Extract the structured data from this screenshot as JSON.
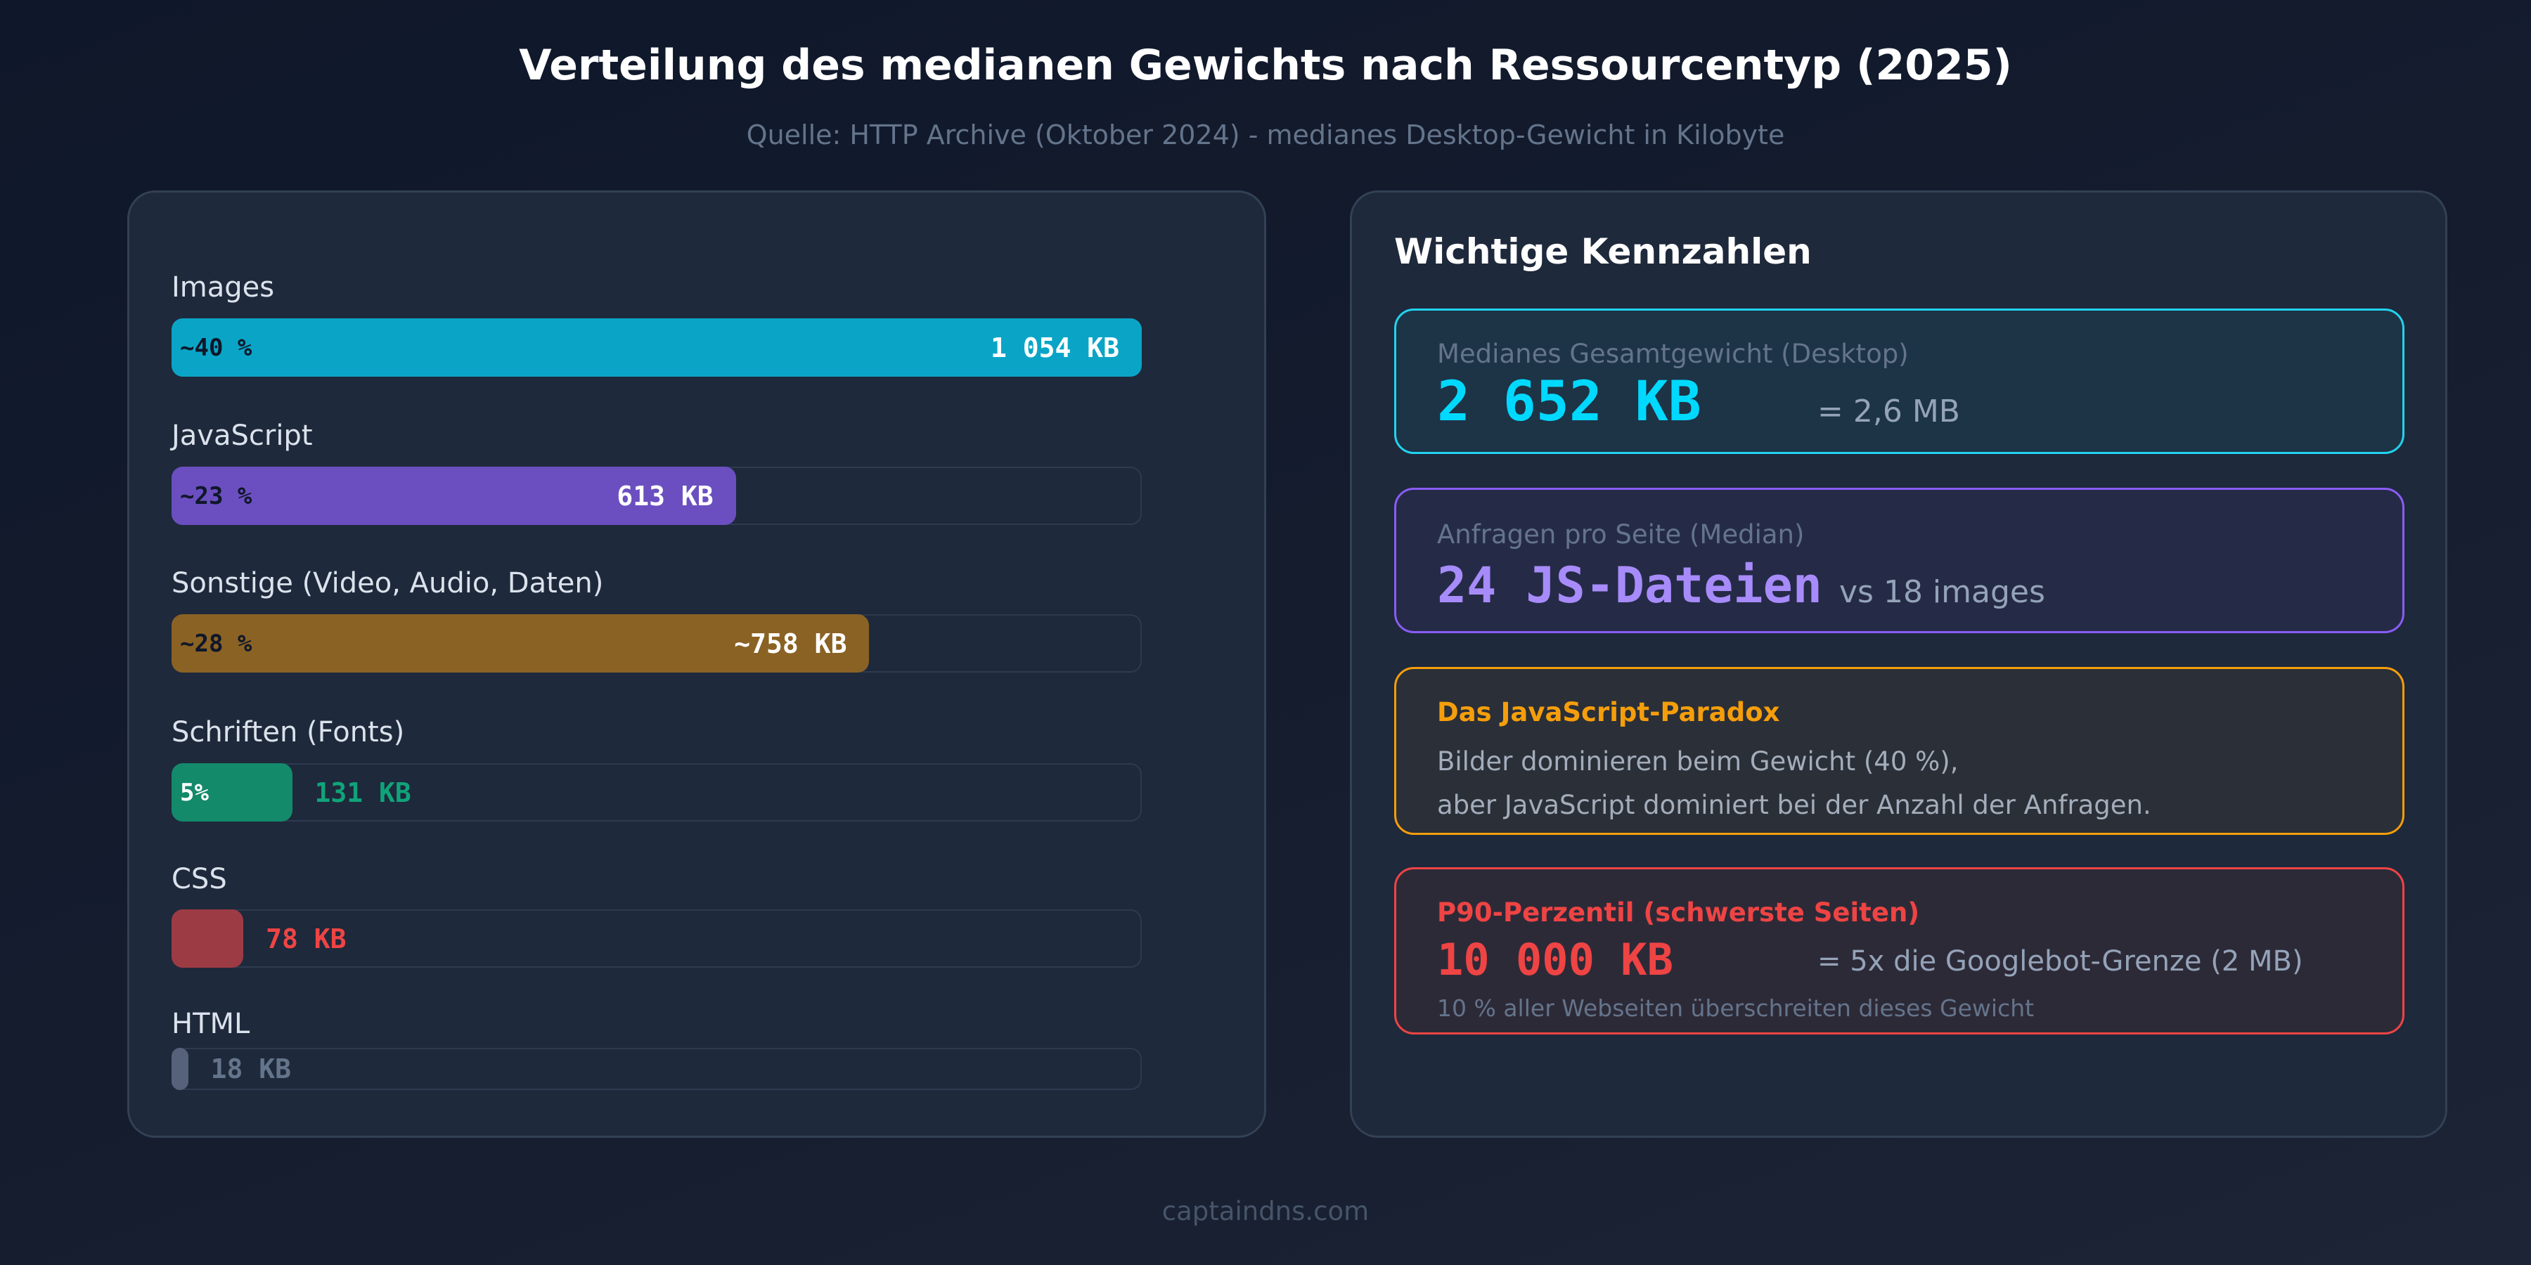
{
  "chart_data": {
    "type": "bar",
    "orientation": "horizontal",
    "title": "Verteilung des medianen Gewichts nach Ressourcentyp (2025)",
    "subtitle": "Quelle: HTTP Archive (Oktober 2024) - medianes Desktop-Gewicht in Kilobyte",
    "unit": "KB",
    "categories": [
      "Images",
      "JavaScript",
      "Sonstige (Video, Audio, Daten)",
      "Schriften (Fonts)",
      "CSS",
      "HTML"
    ],
    "values": [
      1054,
      613,
      758,
      131,
      78,
      18
    ],
    "bars": [
      {
        "label": "Images",
        "kb": 1054,
        "pct_label": "~40 %",
        "value_label": "1 054 KB",
        "color": "#0aa5c6",
        "value_inside": true,
        "pct_color": "#0f172a",
        "value_color": "#ffffff"
      },
      {
        "label": "JavaScript",
        "kb": 613,
        "pct_label": "~23 %",
        "value_label": "613 KB",
        "color": "#6b4fc0",
        "value_inside": true,
        "pct_color": "#0f172a",
        "value_color": "#ffffff"
      },
      {
        "label": "Sonstige (Video, Audio, Daten)",
        "kb": 758,
        "pct_label": "~28 %",
        "value_label": "~758 KB",
        "color": "#8a6224",
        "value_inside": true,
        "pct_color": "#0f172a",
        "value_color": "#ffffff"
      },
      {
        "label": "Schriften (Fonts)",
        "kb": 131,
        "pct_label": "5%",
        "value_label": "131 KB",
        "color": "#138a6a",
        "value_inside": false,
        "pct_color": "#ffffff",
        "value_color": "#10a37a"
      },
      {
        "label": "CSS",
        "kb": 78,
        "pct_label": "",
        "value_label": "78 KB",
        "color": "#9d3b45",
        "value_inside": false,
        "pct_color": "#ffffff",
        "value_color": "#ef4444"
      },
      {
        "label": "HTML",
        "kb": 18,
        "pct_label": "",
        "value_label": "18 KB",
        "color": "#55627a",
        "value_inside": false,
        "pct_color": "#ffffff",
        "value_color": "#64748b"
      }
    ],
    "grid": false,
    "legend": "none"
  },
  "header": {
    "title": "Verteilung des medianen Gewichts nach Ressourcentyp (2025)",
    "subtitle": "Quelle: HTTP Archive (Oktober 2024) - medianes Desktop-Gewicht in Kilobyte"
  },
  "kpis": {
    "heading": "Wichtige Kennzahlen",
    "cards": [
      {
        "label": "Medianes Gesamtgewicht (Desktop)",
        "value": "2 652 KB",
        "side": "= 2,6 MB",
        "color": "#22d3ee",
        "value_color": "#00d9ff"
      },
      {
        "label": "Anfragen pro Seite (Median)",
        "value": "24 JS-Dateien",
        "side": "vs 18 images",
        "color": "#8b5cf6",
        "value_color": "#a78bfa"
      },
      {
        "title": "Das JavaScript-Paradox",
        "line1": "Bilder dominieren beim Gewicht (40 %),",
        "line2": "aber JavaScript dominiert bei der Anzahl der Anfragen.",
        "color": "#f59e0b"
      },
      {
        "title": "P90-Perzentil (schwerste Seiten)",
        "value": "10 000 KB",
        "side": "= 5x die Googlebot-Grenze (2 MB)",
        "note": "10 % aller Webseiten überschreiten dieses Gewicht",
        "color": "#ef4444"
      }
    ]
  },
  "footer": {
    "text": "captaindns.com"
  }
}
